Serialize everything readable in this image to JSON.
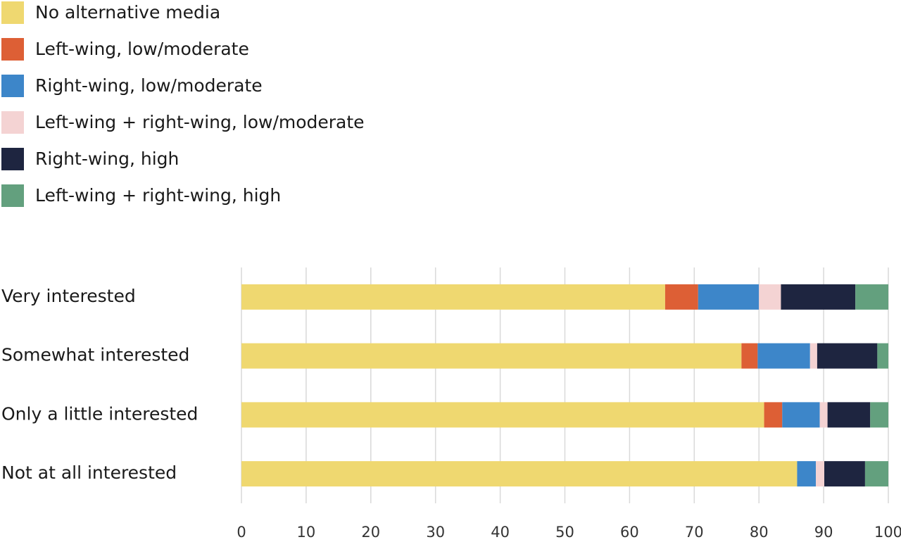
{
  "chart_data": {
    "type": "stacked-bar-horizontal",
    "categories": [
      "Very interested",
      "Somewhat interested",
      "Only a little interested",
      "Not at all interested"
    ],
    "series": [
      {
        "name": "No alternative media",
        "color": "#efd870",
        "values": [
          65.5,
          77.3,
          80.8,
          85.9
        ]
      },
      {
        "name": "Left-wing, low/moderate",
        "color": "#dd5f35",
        "values": [
          5.1,
          2.5,
          2.8,
          0
        ]
      },
      {
        "name": "Right-wing, low/moderate",
        "color": "#3d86c9",
        "values": [
          9.4,
          8.1,
          5.8,
          2.9
        ]
      },
      {
        "name": "Left-wing + right-wing, low/moderate",
        "color": "#f4d3d3",
        "values": [
          3.4,
          1.1,
          1.2,
          1.3
        ]
      },
      {
        "name": "Right-wing, high",
        "color": "#1e2540",
        "values": [
          11.5,
          9.3,
          6.6,
          6.3
        ]
      },
      {
        "name": "Left-wing + right-wing, high",
        "color": "#63a07e",
        "values": [
          5.1,
          1.7,
          2.8,
          3.6
        ]
      }
    ],
    "xlim": [
      0,
      100
    ],
    "xticks": [
      0,
      10,
      20,
      30,
      40,
      50,
      60,
      70,
      80,
      90,
      100
    ],
    "grid": true,
    "legend": "top-left"
  }
}
